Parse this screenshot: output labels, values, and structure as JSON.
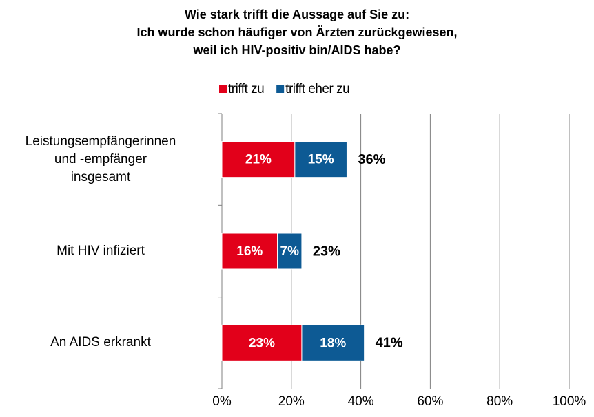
{
  "chart_data": {
    "type": "stacked_bar_horizontal",
    "title": "Wie stark trifft die Aussage auf Sie zu:\nIch wurde schon häufiger von Ärzten zurückgewiesen,\nweil ich HIV-positiv bin/AIDS habe?",
    "categories": [
      "Leistungsempfängerinnen\nund -empfänger\ninsgesamt",
      "Mit HIV infiziert",
      "An AIDS erkrankt"
    ],
    "series": [
      {
        "name": "trifft zu",
        "color": "#e2001a",
        "values": [
          21,
          16,
          23
        ],
        "value_labels": [
          "21%",
          "16%",
          "23%"
        ]
      },
      {
        "name": "trifft eher zu",
        "color": "#0d5a94",
        "values": [
          15,
          7,
          18
        ],
        "value_labels": [
          "15%",
          "7%",
          "18%"
        ]
      }
    ],
    "totals": {
      "values": [
        36,
        23,
        41
      ],
      "value_labels": [
        "36%",
        "23%",
        "41%"
      ]
    },
    "xlim": [
      0,
      100
    ],
    "xticks": [
      {
        "value": 0,
        "label": "0%"
      },
      {
        "value": 20,
        "label": "20%"
      },
      {
        "value": 40,
        "label": "40%"
      },
      {
        "value": 60,
        "label": "60%"
      },
      {
        "value": 80,
        "label": "80%"
      },
      {
        "value": 100,
        "label": "100%"
      }
    ],
    "grid": true,
    "legend": "top"
  }
}
